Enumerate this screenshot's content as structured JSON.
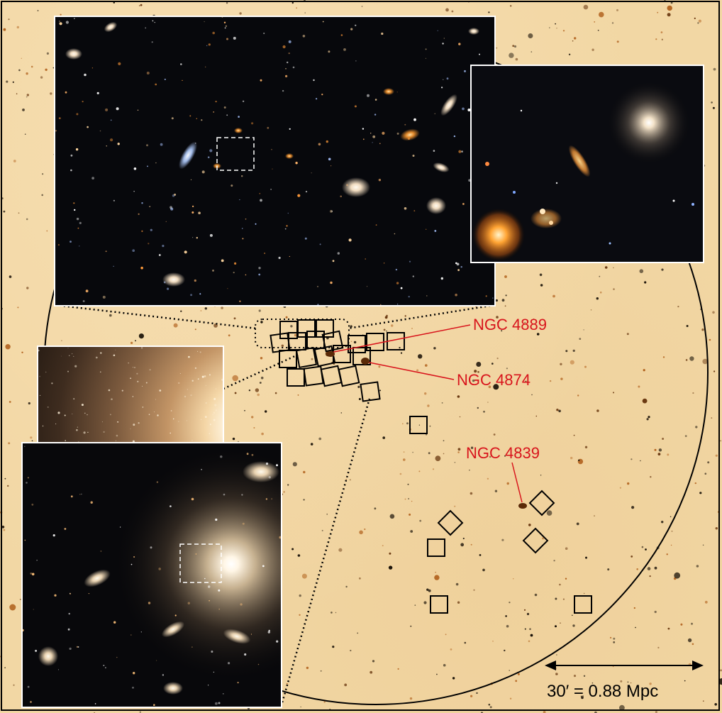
{
  "annotations": {
    "ngc4889": "NGC 4889",
    "ngc4874": "NGC 4874",
    "ngc4839": "NGC 4839",
    "label_color": "#d8141c"
  },
  "scale_bar": {
    "label": "30′ = 0.88 Mpc"
  },
  "insets": {
    "top_left": "hst-field-galaxies",
    "top_right": "zoomed-field-detail",
    "mid_left": "ngc4874-halo",
    "bottom_left": "ngc4874-field"
  }
}
